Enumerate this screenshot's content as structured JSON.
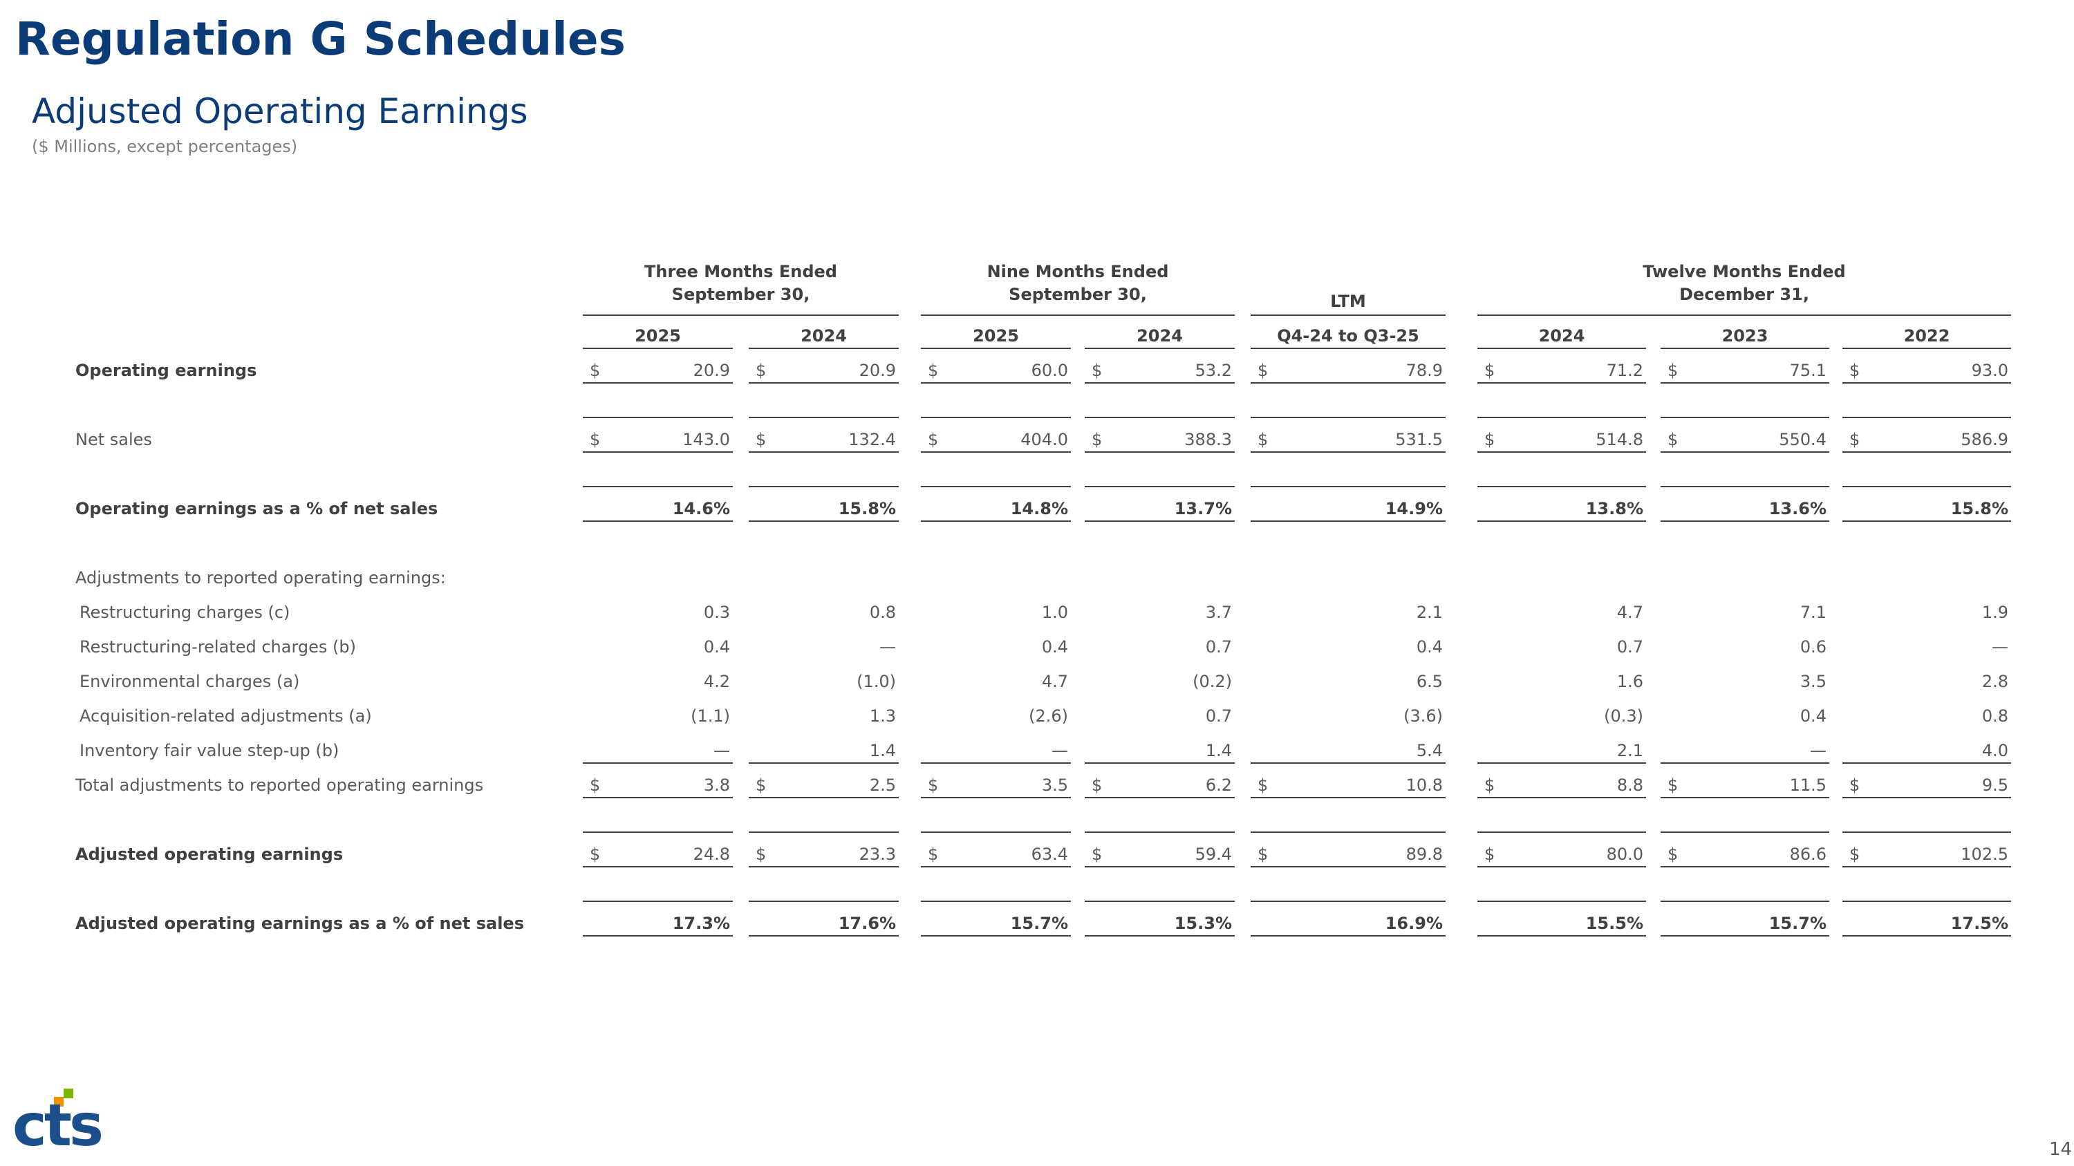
{
  "header": {
    "title": "Regulation G Schedules",
    "subtitle": "Adjusted Operating Earnings",
    "note": "($ Millions, except percentages)"
  },
  "table": {
    "groups": [
      {
        "label": [
          "Three Months Ended",
          "September 30,"
        ],
        "columns": [
          "2025",
          "2024"
        ]
      },
      {
        "label": [
          "Nine Months Ended",
          "September 30,"
        ],
        "columns": [
          "2025",
          "2024"
        ]
      },
      {
        "label": [
          "LTM"
        ],
        "columns": [
          "Q4-24 to Q3-25"
        ]
      },
      {
        "label": [
          "Twelve Months Ended",
          "December 31,"
        ],
        "columns": [
          "2024",
          "2023",
          "2022"
        ]
      }
    ],
    "rows": [
      {
        "label": "Operating earnings",
        "currency": "$",
        "cells": [
          "20.9",
          "20.9",
          "60.0",
          "53.2",
          "78.9",
          "71.2",
          "75.1",
          "93.0"
        ]
      },
      {
        "label": "Net sales",
        "currency": "$",
        "cells": [
          "143.0",
          "132.4",
          "404.0",
          "388.3",
          "531.5",
          "514.8",
          "550.4",
          "586.9"
        ]
      },
      {
        "label": "Operating earnings as a % of net sales",
        "cells": [
          "14.6%",
          "15.8%",
          "14.8%",
          "13.7%",
          "14.9%",
          "13.8%",
          "13.6%",
          "15.8%"
        ]
      },
      {
        "label": "Adjustments to reported operating earnings:"
      },
      {
        "label": "Restructuring charges (c)",
        "cells": [
          "0.3",
          "0.8",
          "1.0",
          "3.7",
          "2.1",
          "4.7",
          "7.1",
          "1.9"
        ]
      },
      {
        "label": "Restructuring-related charges (b)",
        "cells": [
          "0.4",
          "—",
          "0.4",
          "0.7",
          "0.4",
          "0.7",
          "0.6",
          "—"
        ]
      },
      {
        "label": "Environmental charges (a)",
        "cells": [
          "4.2",
          "(1.0)",
          "4.7",
          "(0.2)",
          "6.5",
          "1.6",
          "3.5",
          "2.8"
        ]
      },
      {
        "label": "Acquisition-related adjustments (a)",
        "cells": [
          "(1.1)",
          "1.3",
          "(2.6)",
          "0.7",
          "(3.6)",
          "(0.3)",
          "0.4",
          "0.8"
        ]
      },
      {
        "label": "Inventory fair value step-up (b)",
        "cells": [
          "—",
          "1.4",
          "—",
          "1.4",
          "5.4",
          "2.1",
          "—",
          "4.0"
        ]
      },
      {
        "label": "Total adjustments to reported operating earnings",
        "currency": "$",
        "cells": [
          "3.8",
          "2.5",
          "3.5",
          "6.2",
          "10.8",
          "8.8",
          "11.5",
          "9.5"
        ]
      },
      {
        "label": "Adjusted operating earnings",
        "currency": "$",
        "cells": [
          "24.8",
          "23.3",
          "63.4",
          "59.4",
          "89.8",
          "80.0",
          "86.6",
          "102.5"
        ]
      },
      {
        "label": "Adjusted operating earnings as a % of net sales",
        "cells": [
          "17.3%",
          "17.6%",
          "15.7%",
          "15.3%",
          "16.9%",
          "15.5%",
          "15.7%",
          "17.5%"
        ]
      }
    ]
  },
  "footer": {
    "logo": "cts",
    "page_number": "14"
  }
}
